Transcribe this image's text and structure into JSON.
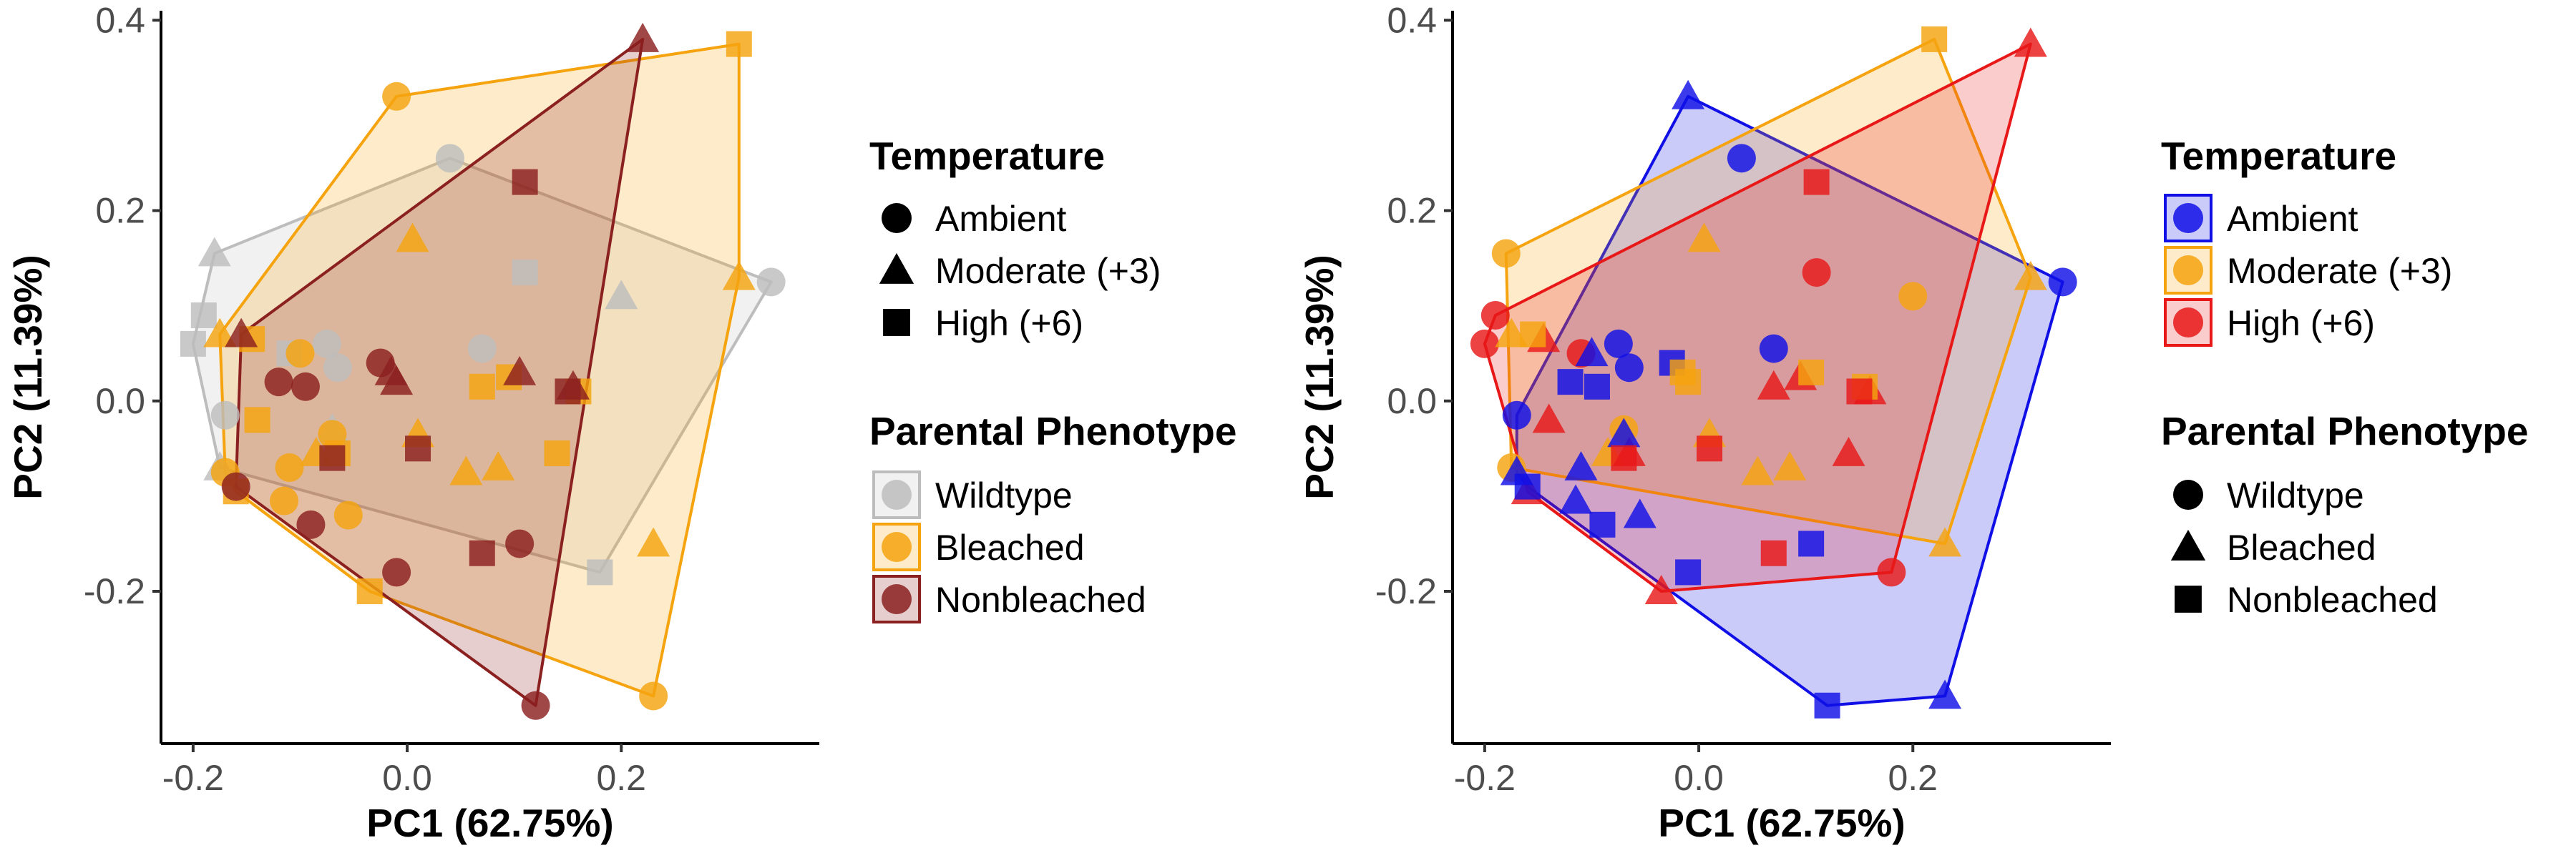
{
  "chart_data": [
    {
      "type": "scatter",
      "title": "",
      "xlabel": "PC1 (62.75%)",
      "ylabel": "PC2 (11.39%)",
      "xlim": [
        -0.23,
        0.385
      ],
      "ylim": [
        -0.36,
        0.41
      ],
      "xticks": [
        "-0.2",
        "0.0",
        "0.2"
      ],
      "xtick_values": [
        -0.2,
        0,
        0.2
      ],
      "yticks": [
        "-0.2",
        "0.0",
        "0.2",
        "0.4"
      ],
      "ytick_values": [
        -0.2,
        0,
        0.2,
        0.4
      ],
      "grid": false,
      "color_by": "phenotype",
      "shape_by": "temperature",
      "legends": [
        {
          "title": "Temperature",
          "type": "shape",
          "entries": [
            {
              "label": "Ambient",
              "key": "Ambient",
              "shape": "circle"
            },
            {
              "label": "Moderate (+3)",
              "key": "Moderate",
              "shape": "triangle"
            },
            {
              "label": "High (+6)",
              "key": "High",
              "shape": "square"
            }
          ]
        },
        {
          "title": "Parental Phenotype",
          "type": "color",
          "entries": [
            {
              "label": "Wildtype",
              "key": "Wildtype",
              "color": "#bdbdbd"
            },
            {
              "label": "Bleached",
              "key": "Bleached",
              "color": "#f5a30f"
            },
            {
              "label": "Nonbleached",
              "key": "Nonbleached",
              "color": "#8b2020"
            }
          ]
        }
      ]
    },
    {
      "type": "scatter",
      "title": "",
      "xlabel": "PC1 (62.75%)",
      "ylabel": "PC2 (11.39%)",
      "xlim": [
        -0.23,
        0.385
      ],
      "ylim": [
        -0.36,
        0.41
      ],
      "xticks": [
        "-0.2",
        "0.0",
        "0.2"
      ],
      "xtick_values": [
        -0.2,
        0,
        0.2
      ],
      "yticks": [
        "-0.2",
        "0.0",
        "0.2",
        "0.4"
      ],
      "ytick_values": [
        -0.2,
        0,
        0.2,
        0.4
      ],
      "grid": false,
      "color_by": "temperature",
      "shape_by": "phenotype",
      "legends": [
        {
          "title": "Temperature",
          "type": "color",
          "entries": [
            {
              "label": "Ambient",
              "key": "Ambient",
              "color": "#1010e6"
            },
            {
              "label": "Moderate (+3)",
              "key": "Moderate",
              "color": "#f5a30f"
            },
            {
              "label": "High (+6)",
              "key": "High",
              "color": "#e81818"
            }
          ]
        },
        {
          "title": "Parental Phenotype",
          "type": "shape",
          "entries": [
            {
              "label": "Wildtype",
              "key": "Wildtype",
              "shape": "circle"
            },
            {
              "label": "Bleached",
              "key": "Bleached",
              "shape": "triangle"
            },
            {
              "label": "Nonbleached",
              "key": "Nonbleached",
              "shape": "square"
            }
          ]
        }
      ]
    }
  ],
  "points": [
    {
      "x": -0.2,
      "y": 0.06,
      "temperature": "High",
      "phenotype": "Wildtype"
    },
    {
      "x": -0.19,
      "y": 0.09,
      "temperature": "High",
      "phenotype": "Wildtype"
    },
    {
      "x": -0.18,
      "y": 0.155,
      "temperature": "Moderate",
      "phenotype": "Wildtype"
    },
    {
      "x": -0.17,
      "y": -0.015,
      "temperature": "Ambient",
      "phenotype": "Wildtype"
    },
    {
      "x": -0.175,
      "y": -0.07,
      "temperature": "Moderate",
      "phenotype": "Wildtype"
    },
    {
      "x": -0.11,
      "y": 0.05,
      "temperature": "High",
      "phenotype": "Wildtype"
    },
    {
      "x": -0.075,
      "y": 0.06,
      "temperature": "Ambient",
      "phenotype": "Wildtype"
    },
    {
      "x": -0.065,
      "y": 0.035,
      "temperature": "Ambient",
      "phenotype": "Wildtype"
    },
    {
      "x": -0.07,
      "y": -0.03,
      "temperature": "Moderate",
      "phenotype": "Wildtype"
    },
    {
      "x": 0.04,
      "y": 0.255,
      "temperature": "Ambient",
      "phenotype": "Wildtype"
    },
    {
      "x": 0.11,
      "y": 0.135,
      "temperature": "High",
      "phenotype": "Wildtype"
    },
    {
      "x": 0.07,
      "y": 0.055,
      "temperature": "Ambient",
      "phenotype": "Wildtype"
    },
    {
      "x": 0.2,
      "y": 0.11,
      "temperature": "Moderate",
      "phenotype": "Wildtype"
    },
    {
      "x": 0.34,
      "y": 0.125,
      "temperature": "Ambient",
      "phenotype": "Wildtype"
    },
    {
      "x": 0.18,
      "y": -0.18,
      "temperature": "High",
      "phenotype": "Wildtype"
    },
    {
      "x": -0.01,
      "y": 0.32,
      "temperature": "Ambient",
      "phenotype": "Bleached"
    },
    {
      "x": 0.31,
      "y": 0.375,
      "temperature": "High",
      "phenotype": "Bleached"
    },
    {
      "x": 0.31,
      "y": 0.13,
      "temperature": "Moderate",
      "phenotype": "Bleached"
    },
    {
      "x": 0.23,
      "y": -0.15,
      "temperature": "Moderate",
      "phenotype": "Bleached"
    },
    {
      "x": 0.23,
      "y": -0.31,
      "temperature": "Ambient",
      "phenotype": "Bleached"
    },
    {
      "x": -0.035,
      "y": -0.2,
      "temperature": "High",
      "phenotype": "Bleached"
    },
    {
      "x": -0.16,
      "y": -0.095,
      "temperature": "High",
      "phenotype": "Bleached"
    },
    {
      "x": -0.17,
      "y": -0.075,
      "temperature": "Ambient",
      "phenotype": "Bleached"
    },
    {
      "x": -0.175,
      "y": 0.07,
      "temperature": "Moderate",
      "phenotype": "Bleached"
    },
    {
      "x": -0.145,
      "y": 0.065,
      "temperature": "High",
      "phenotype": "Bleached"
    },
    {
      "x": 0.005,
      "y": 0.17,
      "temperature": "Moderate",
      "phenotype": "Bleached"
    },
    {
      "x": -0.14,
      "y": -0.02,
      "temperature": "High",
      "phenotype": "Bleached"
    },
    {
      "x": -0.11,
      "y": -0.07,
      "temperature": "Ambient",
      "phenotype": "Bleached"
    },
    {
      "x": -0.085,
      "y": -0.055,
      "temperature": "Moderate",
      "phenotype": "Bleached"
    },
    {
      "x": -0.065,
      "y": -0.055,
      "temperature": "High",
      "phenotype": "Bleached"
    },
    {
      "x": -0.115,
      "y": -0.105,
      "temperature": "Ambient",
      "phenotype": "Bleached"
    },
    {
      "x": -0.055,
      "y": -0.12,
      "temperature": "Ambient",
      "phenotype": "Bleached"
    },
    {
      "x": -0.07,
      "y": -0.035,
      "temperature": "Ambient",
      "phenotype": "Bleached"
    },
    {
      "x": 0.01,
      "y": -0.035,
      "temperature": "Moderate",
      "phenotype": "Bleached"
    },
    {
      "x": 0.055,
      "y": -0.075,
      "temperature": "Moderate",
      "phenotype": "Bleached"
    },
    {
      "x": 0.085,
      "y": -0.07,
      "temperature": "Moderate",
      "phenotype": "Bleached"
    },
    {
      "x": 0.07,
      "y": 0.015,
      "temperature": "High",
      "phenotype": "Bleached"
    },
    {
      "x": 0.14,
      "y": -0.055,
      "temperature": "High",
      "phenotype": "Bleached"
    },
    {
      "x": 0.095,
      "y": 0.025,
      "temperature": "High",
      "phenotype": "Bleached"
    },
    {
      "x": 0.16,
      "y": 0.01,
      "temperature": "High",
      "phenotype": "Bleached"
    },
    {
      "x": -0.1,
      "y": 0.05,
      "temperature": "Ambient",
      "phenotype": "Bleached"
    },
    {
      "x": 0.22,
      "y": 0.38,
      "temperature": "Moderate",
      "phenotype": "Nonbleached"
    },
    {
      "x": 0.11,
      "y": 0.23,
      "temperature": "High",
      "phenotype": "Nonbleached"
    },
    {
      "x": -0.16,
      "y": -0.09,
      "temperature": "Ambient",
      "phenotype": "Nonbleached"
    },
    {
      "x": -0.155,
      "y": 0.07,
      "temperature": "Moderate",
      "phenotype": "Nonbleached"
    },
    {
      "x": -0.095,
      "y": 0.015,
      "temperature": "Ambient",
      "phenotype": "Nonbleached"
    },
    {
      "x": -0.07,
      "y": -0.06,
      "temperature": "High",
      "phenotype": "Nonbleached"
    },
    {
      "x": -0.12,
      "y": 0.02,
      "temperature": "Ambient",
      "phenotype": "Nonbleached"
    },
    {
      "x": -0.09,
      "y": -0.13,
      "temperature": "Ambient",
      "phenotype": "Nonbleached"
    },
    {
      "x": -0.01,
      "y": -0.18,
      "temperature": "Ambient",
      "phenotype": "Nonbleached"
    },
    {
      "x": -0.025,
      "y": 0.04,
      "temperature": "Ambient",
      "phenotype": "Nonbleached"
    },
    {
      "x": -0.015,
      "y": 0.03,
      "temperature": "Moderate",
      "phenotype": "Nonbleached"
    },
    {
      "x": -0.01,
      "y": 0.02,
      "temperature": "Moderate",
      "phenotype": "Nonbleached"
    },
    {
      "x": 0.01,
      "y": -0.05,
      "temperature": "High",
      "phenotype": "Nonbleached"
    },
    {
      "x": 0.105,
      "y": -0.15,
      "temperature": "Ambient",
      "phenotype": "Nonbleached"
    },
    {
      "x": 0.07,
      "y": -0.16,
      "temperature": "High",
      "phenotype": "Nonbleached"
    },
    {
      "x": 0.105,
      "y": 0.03,
      "temperature": "Moderate",
      "phenotype": "Nonbleached"
    },
    {
      "x": 0.155,
      "y": 0.015,
      "temperature": "Moderate",
      "phenotype": "Nonbleached"
    },
    {
      "x": 0.15,
      "y": 0.01,
      "temperature": "High",
      "phenotype": "Nonbleached"
    },
    {
      "x": 0.12,
      "y": -0.32,
      "temperature": "Ambient",
      "phenotype": "Nonbleached"
    }
  ],
  "colors": {
    "Wildtype": "#bdbdbd",
    "Bleached": "#f5a30f",
    "Nonbleached": "#8b2020",
    "Ambient": "#1010e6",
    "Moderate": "#f5a30f",
    "High": "#e81818"
  }
}
